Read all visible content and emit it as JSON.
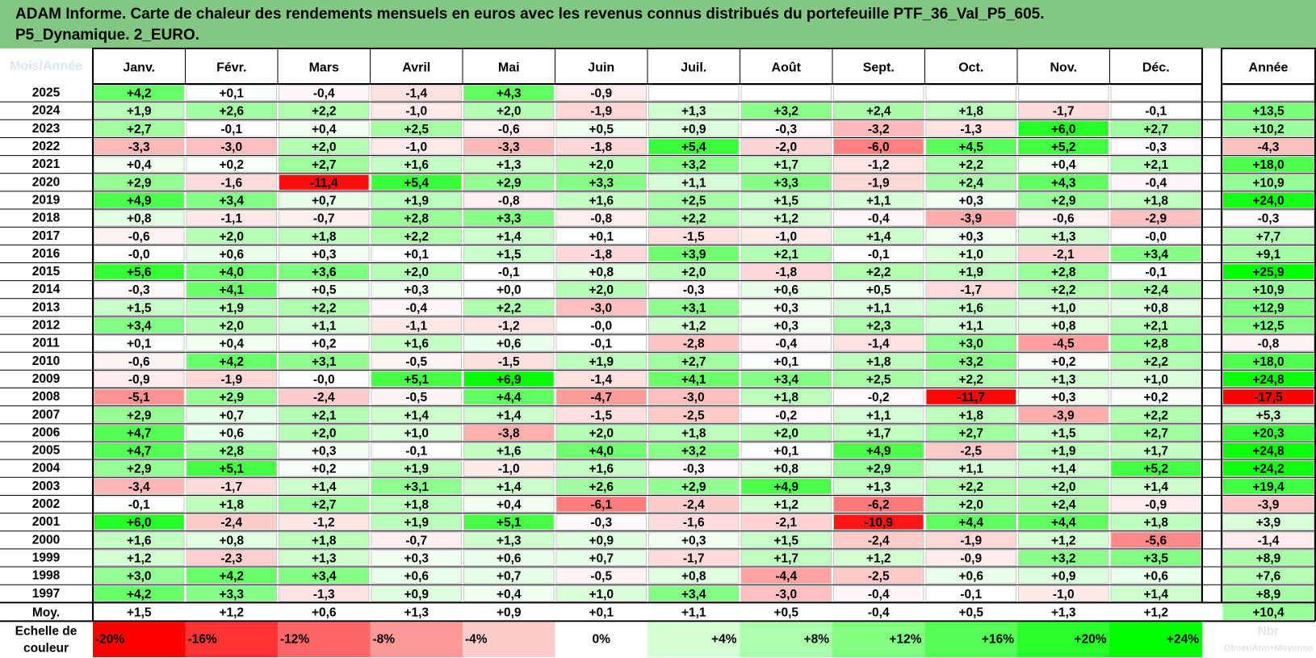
{
  "chart_data": {
    "type": "heatmap",
    "title": "ADAM Informe. Carte de chaleur des rendements mensuels en euros avec les revenus connus distribués du portefeuille PTF_36_Val_P5_605.",
    "subtitle": "P5_Dynamique. 2_EURO.",
    "corner_label": "Mois/Année",
    "columns": [
      "Janv.",
      "Févr.",
      "Mars",
      "Avril",
      "Mai",
      "Juin",
      "Juil.",
      "Août",
      "Sept.",
      "Oct.",
      "Nov.",
      "Déc."
    ],
    "year_column_label": "Année",
    "rows": [
      {
        "label": "2025",
        "values": [
          "+4,2",
          "+0,1",
          "-0,4",
          "-1,4",
          "+4,3",
          "-0,9",
          "",
          "",
          "",
          "",
          "",
          ""
        ],
        "year": ""
      },
      {
        "label": "2024",
        "values": [
          "+1,9",
          "+2,6",
          "+2,2",
          "-1,0",
          "+2,0",
          "-1,9",
          "+1,3",
          "+3,2",
          "+2,4",
          "+1,8",
          "-1,7",
          "-0,1"
        ],
        "year": "+13,5"
      },
      {
        "label": "2023",
        "values": [
          "+2,7",
          "-0,1",
          "+0,4",
          "+2,5",
          "-0,6",
          "+0,5",
          "+0,9",
          "-0,3",
          "-3,2",
          "-1,3",
          "+6,0",
          "+2,7"
        ],
        "year": "+10,2"
      },
      {
        "label": "2022",
        "values": [
          "-3,3",
          "-3,0",
          "+2,0",
          "-1,0",
          "-3,3",
          "-1,8",
          "+5,4",
          "-2,0",
          "-6,0",
          "+4,5",
          "+5,2",
          "-0,3"
        ],
        "year": "-4,3"
      },
      {
        "label": "2021",
        "values": [
          "+0,4",
          "+0,2",
          "+2,7",
          "+1,6",
          "+1,3",
          "+2,0",
          "+3,2",
          "+1,7",
          "-1,2",
          "+2,2",
          "+0,4",
          "+2,1"
        ],
        "year": "+18,0"
      },
      {
        "label": "2020",
        "values": [
          "+2,9",
          "-1,6",
          "-11,4",
          "+5,4",
          "+2,9",
          "+3,3",
          "+1,1",
          "+3,3",
          "-1,9",
          "+2,4",
          "+4,3",
          "-0,4"
        ],
        "year": "+10,9"
      },
      {
        "label": "2019",
        "values": [
          "+4,9",
          "+3,4",
          "+0,7",
          "+1,9",
          "-0,8",
          "+1,6",
          "+2,5",
          "+1,5",
          "+1,1",
          "+0,3",
          "+2,9",
          "+1,8"
        ],
        "year": "+24,0"
      },
      {
        "label": "2018",
        "values": [
          "+0,8",
          "-1,1",
          "-0,7",
          "+2,8",
          "+3,3",
          "-0,8",
          "+2,2",
          "+1,2",
          "-0,4",
          "-3,9",
          "-0,6",
          "-2,9"
        ],
        "year": "-0,3"
      },
      {
        "label": "2017",
        "values": [
          "-0,6",
          "+2,0",
          "+1,8",
          "+2,2",
          "+1,4",
          "+0,1",
          "-1,5",
          "-1,0",
          "+1,4",
          "+0,3",
          "+1,3",
          "-0,0"
        ],
        "year": "+7,7"
      },
      {
        "label": "2016",
        "values": [
          "-0,0",
          "+0,6",
          "+0,3",
          "+0,1",
          "+1,5",
          "-1,8",
          "+3,9",
          "+2,1",
          "-0,1",
          "+1,0",
          "-2,1",
          "+3,4"
        ],
        "year": "+9,1"
      },
      {
        "label": "2015",
        "values": [
          "+5,6",
          "+4,0",
          "+3,6",
          "+2,0",
          "-0,1",
          "+0,8",
          "+2,0",
          "-1,8",
          "+2,2",
          "+1,9",
          "+2,8",
          "-0,1"
        ],
        "year": "+25,9"
      },
      {
        "label": "2014",
        "values": [
          "-0,3",
          "+4,1",
          "+0,5",
          "+0,3",
          "+0,0",
          "+2,0",
          "-0,3",
          "+0,6",
          "+0,5",
          "-1,7",
          "+2,2",
          "+2,4"
        ],
        "year": "+10,9"
      },
      {
        "label": "2013",
        "values": [
          "+1,5",
          "+1,9",
          "+2,2",
          "-0,4",
          "+2,2",
          "-3,0",
          "+3,1",
          "+0,3",
          "+1,1",
          "+1,6",
          "+1,0",
          "+0,8"
        ],
        "year": "+12,9"
      },
      {
        "label": "2012",
        "values": [
          "+3,4",
          "+2,0",
          "+1,1",
          "-1,1",
          "-1,2",
          "-0,0",
          "+1,2",
          "+0,3",
          "+2,3",
          "+1,1",
          "+0,8",
          "+2,1"
        ],
        "year": "+12,5"
      },
      {
        "label": "2011",
        "values": [
          "+0,1",
          "+0,4",
          "+0,2",
          "+1,6",
          "+0,6",
          "-0,1",
          "-2,8",
          "-0,4",
          "-1,4",
          "+3,0",
          "-4,5",
          "+2,8"
        ],
        "year": "-0,8"
      },
      {
        "label": "2010",
        "values": [
          "-0,6",
          "+4,2",
          "+3,1",
          "-0,5",
          "-1,5",
          "+1,9",
          "+2,7",
          "+0,1",
          "+1,8",
          "+3,2",
          "+0,2",
          "+2,2"
        ],
        "year": "+18,0"
      },
      {
        "label": "2009",
        "values": [
          "-0,9",
          "-1,9",
          "-0,0",
          "+5,1",
          "+6,9",
          "-1,4",
          "+4,1",
          "+3,4",
          "+2,5",
          "+2,2",
          "+1,3",
          "+1,0"
        ],
        "year": "+24,8"
      },
      {
        "label": "2008",
        "values": [
          "-5,1",
          "+2,9",
          "-2,4",
          "-0,5",
          "+4,4",
          "-4,7",
          "-3,0",
          "+1,8",
          "-0,2",
          "-11,7",
          "+0,3",
          "+0,2"
        ],
        "year": "-17,5"
      },
      {
        "label": "2007",
        "values": [
          "+2,9",
          "+0,7",
          "+2,1",
          "+1,4",
          "+1,4",
          "-1,5",
          "-2,5",
          "-0,2",
          "+1,1",
          "+1,8",
          "-3,9",
          "+2,2"
        ],
        "year": "+5,3"
      },
      {
        "label": "2006",
        "values": [
          "+4,7",
          "+0,6",
          "+2,0",
          "+1,0",
          "-3,8",
          "+2,0",
          "+1,8",
          "+2,0",
          "+1,7",
          "+2,7",
          "+1,5",
          "+2,7"
        ],
        "year": "+20,3"
      },
      {
        "label": "2005",
        "values": [
          "+4,7",
          "+2,8",
          "+0,3",
          "-0,1",
          "+1,6",
          "+4,0",
          "+3,2",
          "+0,1",
          "+4,9",
          "-2,5",
          "+1,9",
          "+1,7"
        ],
        "year": "+24,8"
      },
      {
        "label": "2004",
        "values": [
          "+2,9",
          "+5,1",
          "+0,2",
          "+1,9",
          "-1,0",
          "+1,6",
          "-0,3",
          "+0,8",
          "+2,9",
          "+1,1",
          "+1,4",
          "+5,2"
        ],
        "year": "+24,2"
      },
      {
        "label": "2003",
        "values": [
          "-3,4",
          "-1,7",
          "+1,4",
          "+3,1",
          "+1,4",
          "+2,6",
          "+2,9",
          "+4,9",
          "+1,3",
          "+2,2",
          "+2,0",
          "+1,4"
        ],
        "year": "+19,4"
      },
      {
        "label": "2002",
        "values": [
          "-0,1",
          "+1,8",
          "+2,7",
          "+1,8",
          "+0,4",
          "-6,1",
          "-2,4",
          "+1,2",
          "-6,2",
          "+2,0",
          "+2,4",
          "-0,9"
        ],
        "year": "-3,9"
      },
      {
        "label": "2001",
        "values": [
          "+6,0",
          "-2,4",
          "-1,2",
          "+1,9",
          "+5,1",
          "-0,3",
          "-1,6",
          "-2,1",
          "-10,9",
          "+4,4",
          "+4,4",
          "+1,8"
        ],
        "year": "+3,9"
      },
      {
        "label": "2000",
        "values": [
          "+1,6",
          "+0,8",
          "+1,8",
          "-0,7",
          "+1,3",
          "+0,9",
          "+0,3",
          "+1,5",
          "-2,4",
          "-1,9",
          "+1,2",
          "-5,6"
        ],
        "year": "-1,4"
      },
      {
        "label": "1999",
        "values": [
          "+1,2",
          "-2,3",
          "+1,3",
          "+0,3",
          "+0,6",
          "+0,7",
          "-1,7",
          "+1,7",
          "+1,2",
          "-0,9",
          "+3,2",
          "+3,5"
        ],
        "year": "+8,9"
      },
      {
        "label": "1998",
        "values": [
          "+3,0",
          "+4,2",
          "+3,4",
          "+0,6",
          "+0,7",
          "-0,5",
          "+0,8",
          "-4,4",
          "-2,5",
          "+0,6",
          "+0,9",
          "+0,6"
        ],
        "year": "+7,6"
      },
      {
        "label": "1997",
        "values": [
          "+4,2",
          "+3,3",
          "-1,3",
          "+0,9",
          "+0,4",
          "+1,0",
          "+3,4",
          "-3,0",
          "-0,4",
          "-0,1",
          "-1,0",
          "+1,4"
        ],
        "year": "+8,9"
      }
    ],
    "average_row": {
      "label": "Moy.",
      "values": [
        "+1,5",
        "+1,2",
        "+0,6",
        "+1,3",
        "+0,9",
        "+0,1",
        "+1,1",
        "+0,5",
        "-0,4",
        "+0,5",
        "+1,3",
        "+1,2"
      ],
      "year": "+10,4"
    },
    "scale": {
      "label_line1": "Echelle de",
      "label_line2": "couleur",
      "items": [
        "-20%",
        "-16%",
        "-12%",
        "-8%",
        "-4%",
        "0%",
        "+4%",
        "+8%",
        "+12%",
        "+16%",
        "+20%",
        "+24%"
      ],
      "scale_values": [
        -20,
        -16,
        -12,
        -8,
        -4,
        0,
        4,
        8,
        12,
        16,
        20,
        24
      ],
      "extra_label_line1": "Nbr",
      "extra_label_line2": "Obser/Ann+Moyenne"
    },
    "colors": {
      "title_band": "#82c882",
      "negative_max": "#ff0000",
      "positive_max": "#00ff00",
      "neutral": "#ffffff",
      "border": "#000000",
      "separator": "#b8b8b8"
    }
  }
}
